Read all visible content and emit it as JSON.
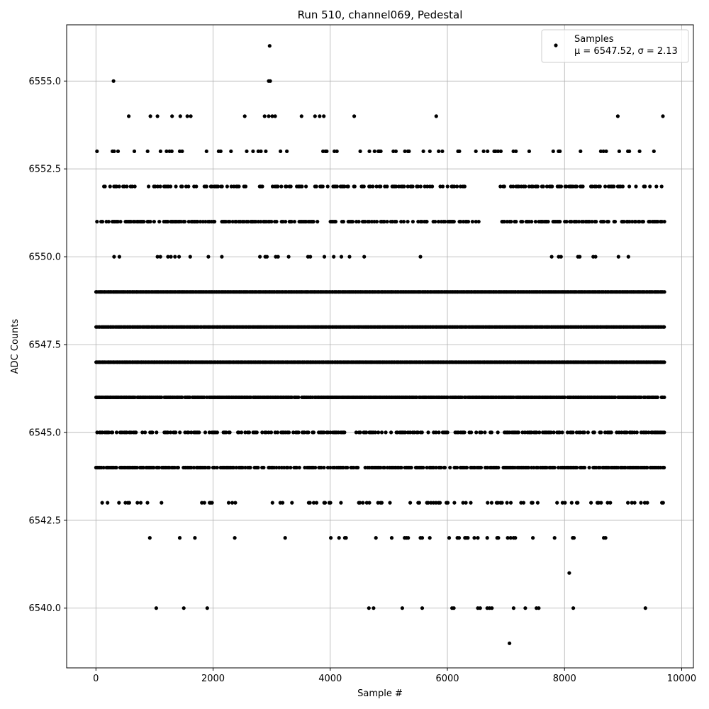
{
  "chart_data": {
    "type": "scatter",
    "title": "Run 510, channel069, Pedestal",
    "xlabel": "Sample #",
    "ylabel": "ADC Counts",
    "xlim": [
      -500,
      10200
    ],
    "ylim": [
      6538.3,
      6556.6
    ],
    "x_ticks": [
      0,
      2000,
      4000,
      6000,
      8000,
      10000
    ],
    "x_tick_labels": [
      "0",
      "2000",
      "4000",
      "6000",
      "8000",
      "10000"
    ],
    "y_ticks": [
      6540.0,
      6542.5,
      6545.0,
      6547.5,
      6550.0,
      6552.5,
      6555.0
    ],
    "y_tick_labels": [
      "6540.0",
      "6542.5",
      "6545.0",
      "6547.5",
      "6550.0",
      "6552.5",
      "6555.0"
    ],
    "grid": true,
    "legend_position": "top-right",
    "marker_color": "#000000",
    "legend": {
      "label": "Samples",
      "stats": "μ = 6547.52, σ = 2.13"
    },
    "series": [
      {
        "name": "Samples",
        "points": [
          {
            "x": 300,
            "y": 6555
          },
          {
            "x": 2950,
            "y": 6555
          },
          {
            "x": 2975,
            "y": 6555
          },
          {
            "x": 2965,
            "y": 6556
          },
          {
            "x": 560,
            "y": 6554
          },
          {
            "x": 930,
            "y": 6554
          },
          {
            "x": 1050,
            "y": 6554
          },
          {
            "x": 1300,
            "y": 6554
          },
          {
            "x": 1440,
            "y": 6554
          },
          {
            "x": 1560,
            "y": 6554
          },
          {
            "x": 1620,
            "y": 6554
          },
          {
            "x": 2540,
            "y": 6554
          },
          {
            "x": 2880,
            "y": 6554
          },
          {
            "x": 2950,
            "y": 6554
          },
          {
            "x": 3010,
            "y": 6554
          },
          {
            "x": 3060,
            "y": 6554
          },
          {
            "x": 3510,
            "y": 6554
          },
          {
            "x": 3740,
            "y": 6554
          },
          {
            "x": 3820,
            "y": 6554
          },
          {
            "x": 3890,
            "y": 6554
          },
          {
            "x": 4410,
            "y": 6554
          },
          {
            "x": 5810,
            "y": 6554
          },
          {
            "x": 8910,
            "y": 6554
          },
          {
            "x": 9680,
            "y": 6554
          },
          {
            "x": 7060,
            "y": 6539
          },
          {
            "x": 8080,
            "y": 6541
          },
          {
            "x": 1030,
            "y": 6540
          },
          {
            "x": 1500,
            "y": 6540
          },
          {
            "x": 1900,
            "y": 6540
          },
          {
            "x": 4660,
            "y": 6540
          },
          {
            "x": 4740,
            "y": 6540
          },
          {
            "x": 5230,
            "y": 6540
          },
          {
            "x": 5570,
            "y": 6540
          },
          {
            "x": 6080,
            "y": 6540
          },
          {
            "x": 6110,
            "y": 6540
          },
          {
            "x": 6520,
            "y": 6540
          },
          {
            "x": 6560,
            "y": 6540
          },
          {
            "x": 6680,
            "y": 6540
          },
          {
            "x": 6720,
            "y": 6540
          },
          {
            "x": 6760,
            "y": 6540
          },
          {
            "x": 7130,
            "y": 6540
          },
          {
            "x": 7330,
            "y": 6540
          },
          {
            "x": 7520,
            "y": 6540
          },
          {
            "x": 7560,
            "y": 6540
          },
          {
            "x": 8150,
            "y": 6540
          },
          {
            "x": 9380,
            "y": 6540
          },
          {
            "x": 920,
            "y": 6542
          },
          {
            "x": 1430,
            "y": 6542
          },
          {
            "x": 1690,
            "y": 6542
          },
          {
            "x": 2370,
            "y": 6542
          },
          {
            "x": 3230,
            "y": 6542
          },
          {
            "x": 4010,
            "y": 6542
          },
          {
            "x": 4150,
            "y": 6542
          },
          {
            "x": 4250,
            "y": 6542
          },
          {
            "x": 4270,
            "y": 6542
          },
          {
            "x": 4780,
            "y": 6542
          },
          {
            "x": 5050,
            "y": 6542
          },
          {
            "x": 5270,
            "y": 6542
          },
          {
            "x": 5300,
            "y": 6542
          },
          {
            "x": 5330,
            "y": 6542
          },
          {
            "x": 5540,
            "y": 6542
          },
          {
            "x": 5570,
            "y": 6542
          },
          {
            "x": 5700,
            "y": 6542
          },
          {
            "x": 6030,
            "y": 6542
          },
          {
            "x": 6170,
            "y": 6542
          },
          {
            "x": 6200,
            "y": 6542
          },
          {
            "x": 6300,
            "y": 6542
          },
          {
            "x": 6320,
            "y": 6542
          },
          {
            "x": 6350,
            "y": 6542
          },
          {
            "x": 6460,
            "y": 6542
          },
          {
            "x": 6520,
            "y": 6542
          },
          {
            "x": 6680,
            "y": 6542
          },
          {
            "x": 6850,
            "y": 6542
          },
          {
            "x": 6870,
            "y": 6542
          },
          {
            "x": 7030,
            "y": 6542
          },
          {
            "x": 7080,
            "y": 6542
          },
          {
            "x": 7130,
            "y": 6542
          },
          {
            "x": 7160,
            "y": 6542
          },
          {
            "x": 7460,
            "y": 6542
          },
          {
            "x": 7830,
            "y": 6542
          },
          {
            "x": 8140,
            "y": 6542
          },
          {
            "x": 8160,
            "y": 6542
          },
          {
            "x": 8670,
            "y": 6542
          },
          {
            "x": 8700,
            "y": 6542
          },
          {
            "x": 310,
            "y": 6550
          },
          {
            "x": 400,
            "y": 6550
          },
          {
            "x": 1050,
            "y": 6550
          },
          {
            "x": 1100,
            "y": 6550
          },
          {
            "x": 1230,
            "y": 6550
          },
          {
            "x": 1280,
            "y": 6550
          },
          {
            "x": 1350,
            "y": 6550
          },
          {
            "x": 1420,
            "y": 6550
          },
          {
            "x": 1610,
            "y": 6550
          },
          {
            "x": 1920,
            "y": 6550
          },
          {
            "x": 2150,
            "y": 6550
          },
          {
            "x": 2800,
            "y": 6550
          },
          {
            "x": 2890,
            "y": 6550
          },
          {
            "x": 2920,
            "y": 6550
          },
          {
            "x": 3070,
            "y": 6550
          },
          {
            "x": 3110,
            "y": 6550
          },
          {
            "x": 3290,
            "y": 6550
          },
          {
            "x": 3620,
            "y": 6550
          },
          {
            "x": 3660,
            "y": 6550
          },
          {
            "x": 3900,
            "y": 6550
          },
          {
            "x": 4060,
            "y": 6550
          },
          {
            "x": 4190,
            "y": 6550
          },
          {
            "x": 4330,
            "y": 6550
          },
          {
            "x": 4580,
            "y": 6550
          },
          {
            "x": 5540,
            "y": 6550
          },
          {
            "x": 7780,
            "y": 6550
          },
          {
            "x": 7900,
            "y": 6550
          },
          {
            "x": 7940,
            "y": 6550
          },
          {
            "x": 8230,
            "y": 6550
          },
          {
            "x": 8260,
            "y": 6550
          },
          {
            "x": 8490,
            "y": 6550
          },
          {
            "x": 8530,
            "y": 6550
          },
          {
            "x": 8920,
            "y": 6550
          },
          {
            "x": 9090,
            "y": 6550
          }
        ],
        "dense_rows": [
          {
            "y": 6553,
            "density": 0.18,
            "gaps": []
          },
          {
            "y": 6552,
            "density": 0.45,
            "gaps": [
              [
                6400,
                6900
              ]
            ]
          },
          {
            "y": 6551,
            "density": 0.55,
            "gaps": [
              [
                6550,
                6900
              ]
            ]
          },
          {
            "y": 6549,
            "density": 1.0,
            "gaps": []
          },
          {
            "y": 6548,
            "density": 1.0,
            "gaps": []
          },
          {
            "y": 6547,
            "density": 1.0,
            "gaps": []
          },
          {
            "y": 6546,
            "density": 0.95,
            "gaps": []
          },
          {
            "y": 6545,
            "density": 0.55,
            "gaps": []
          },
          {
            "y": 6544,
            "density": 0.75,
            "gaps": []
          },
          {
            "y": 6543,
            "density": 0.18,
            "gaps": []
          }
        ],
        "x_range": [
          0,
          9720
        ]
      }
    ]
  }
}
